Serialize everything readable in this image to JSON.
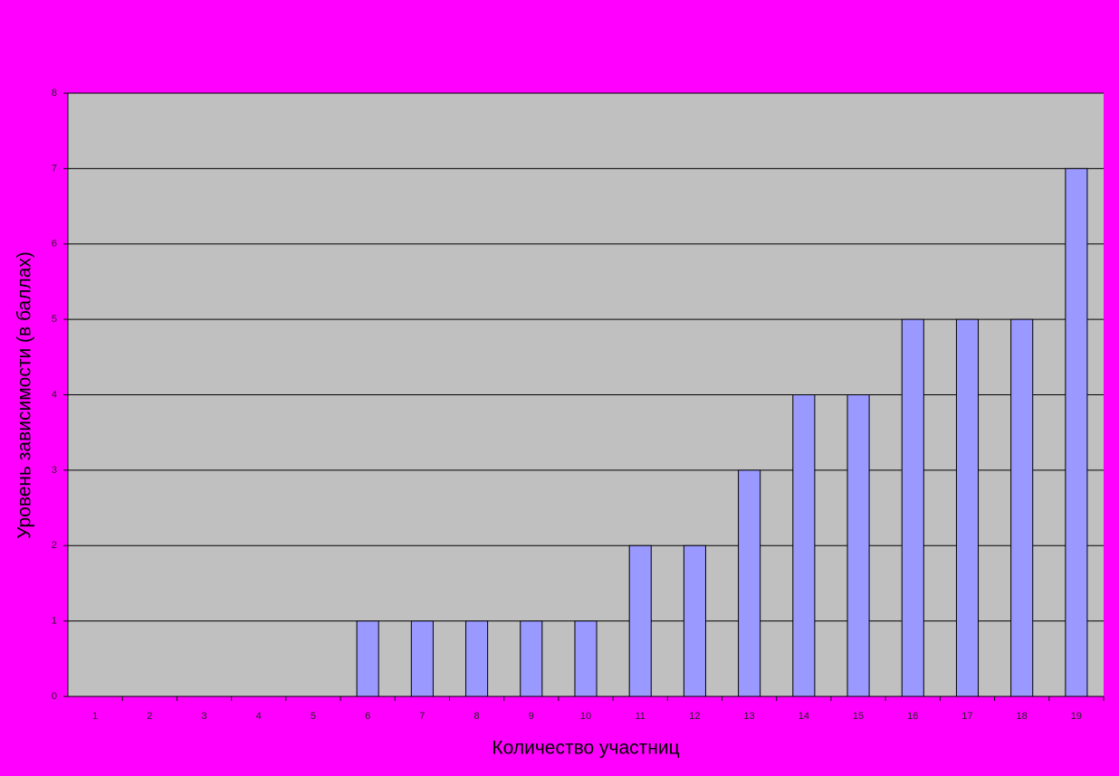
{
  "chart_data": {
    "type": "bar",
    "x_label": "Количество участниц",
    "y_label": "Уровень зависимости (в баллах)",
    "categories": [
      "1",
      "2",
      "3",
      "4",
      "5",
      "6",
      "7",
      "8",
      "9",
      "10",
      "11",
      "12",
      "13",
      "14",
      "15",
      "16",
      "17",
      "18",
      "19"
    ],
    "values": [
      0,
      0,
      0,
      0,
      0,
      1,
      1,
      1,
      1,
      1,
      2,
      2,
      3,
      4,
      4,
      5,
      5,
      5,
      7
    ],
    "color": "#9999ff",
    "ylim": [
      0,
      8
    ],
    "yticks": [
      0,
      1,
      2,
      3,
      4,
      5,
      6,
      7,
      8
    ],
    "grid": true
  }
}
